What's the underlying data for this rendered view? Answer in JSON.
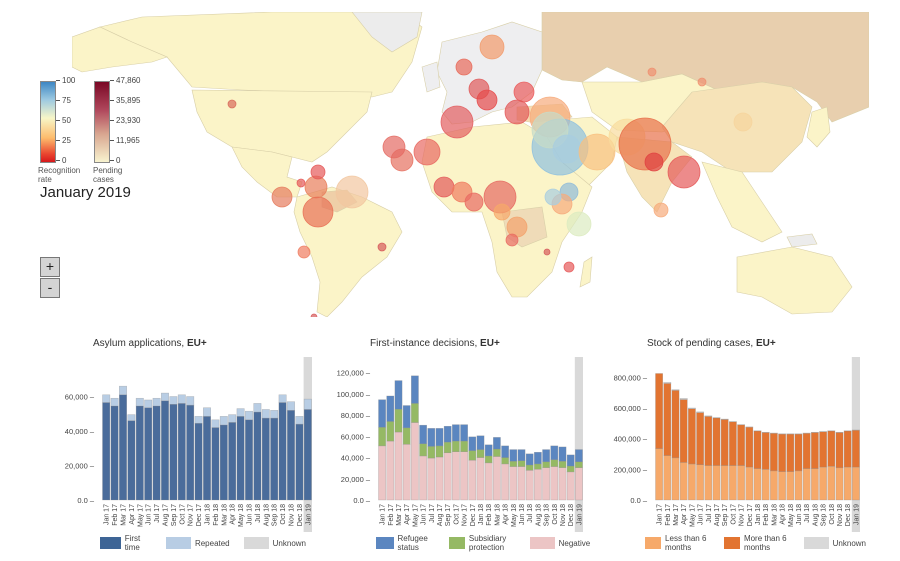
{
  "map": {
    "period": "January 2019",
    "recognition_legend": {
      "caption": "Recognition rate",
      "ticks": [
        "100",
        "75",
        "50",
        "25",
        "0"
      ]
    },
    "pending_legend": {
      "caption": "Pending cases",
      "ticks": [
        "47,860",
        "35,895",
        "23,930",
        "11,965",
        "0"
      ]
    },
    "zoom_in_label": "+",
    "zoom_out_label": "-"
  },
  "chart_data": [
    {
      "type": "bar",
      "stacked": true,
      "title": "Asylum applications, ",
      "title_bold": "EU+",
      "categories": [
        "Jan 17",
        "Feb 17",
        "Mar 17",
        "Apr 17",
        "May 17",
        "Jun 17",
        "Jul 17",
        "Aug 17",
        "Sep 17",
        "Oct 17",
        "Nov 17",
        "Dec 17",
        "Jan 18",
        "Feb 18",
        "Mar 18",
        "Apr 18",
        "May 18",
        "Jun 18",
        "Jul 18",
        "Aug 18",
        "Sep 18",
        "Oct 18",
        "Nov 18",
        "Dec 18",
        "Jan 19"
      ],
      "highlight_category": "Jan 19",
      "yticks": [
        "0.0",
        "20,000",
        "40,000",
        "60,000"
      ],
      "ylim": [
        0,
        80000
      ],
      "series": [
        {
          "name": "First time",
          "color": "#4a6c9b",
          "values": [
            56500,
            54500,
            61000,
            46000,
            54500,
            53500,
            54500,
            57500,
            55500,
            56000,
            55000,
            44500,
            48500,
            42000,
            43500,
            45000,
            48500,
            46500,
            51000,
            47500,
            47500,
            56500,
            52000,
            44000,
            52500
          ]
        },
        {
          "name": "Repeated",
          "color": "#b8cde4",
          "values": [
            4500,
            4500,
            5000,
            3500,
            4500,
            4500,
            4500,
            4500,
            4500,
            5000,
            5000,
            4000,
            5000,
            4500,
            5000,
            4500,
            4500,
            5000,
            5000,
            5000,
            4500,
            4500,
            5000,
            4500,
            6000
          ]
        },
        {
          "name": "Unknown",
          "color": "#d9d9d9",
          "values": [
            0,
            0,
            0,
            0,
            0,
            0,
            0,
            0,
            0,
            0,
            0,
            0,
            0,
            0,
            0,
            0,
            0,
            0,
            0,
            0,
            0,
            0,
            0,
            0,
            0
          ]
        }
      ]
    },
    {
      "type": "bar",
      "stacked": true,
      "title": "First-instance decisions, ",
      "title_bold": "EU+",
      "categories": [
        "Jan 17",
        "Feb 17",
        "Mar 17",
        "Apr 17",
        "May 17",
        "Jun 17",
        "Jul 17",
        "Aug 17",
        "Sep 17",
        "Oct 17",
        "Nov 17",
        "Dec 17",
        "Jan 18",
        "Feb 18",
        "Mar 18",
        "Apr 18",
        "May 18",
        "Jun 18",
        "Jul 18",
        "Aug 18",
        "Sep 18",
        "Oct 18",
        "Nov 18",
        "Dec 18",
        "Jan 19"
      ],
      "highlight_category": "Jan 19",
      "yticks": [
        "0.0",
        "20,000",
        "40,000",
        "60,000",
        "80,000",
        "100,000",
        "120,000"
      ],
      "ylim": [
        0,
        130000
      ],
      "series": [
        {
          "name": "Negative",
          "color": "#ecc5c5",
          "values": [
            51000,
            55500,
            64000,
            52500,
            73000,
            41500,
            39500,
            40500,
            44500,
            45500,
            45500,
            37500,
            40000,
            35000,
            41000,
            34000,
            31500,
            31500,
            28000,
            29000,
            30500,
            31500,
            30500,
            26500,
            30500
          ]
        },
        {
          "name": "Subsidiary protection",
          "color": "#95b964",
          "values": [
            17500,
            18500,
            21500,
            15500,
            18000,
            11500,
            11000,
            10500,
            10000,
            10000,
            10000,
            9000,
            7500,
            6500,
            7000,
            6000,
            5000,
            5500,
            5000,
            5000,
            5500,
            6500,
            6000,
            5500,
            5500
          ]
        },
        {
          "name": "Refugee status",
          "color": "#5b86c0",
          "values": [
            26000,
            24000,
            27000,
            21000,
            26000,
            17500,
            17000,
            16500,
            15000,
            15500,
            15500,
            13000,
            13000,
            10500,
            11000,
            11000,
            11000,
            10500,
            10500,
            11000,
            11500,
            13000,
            13500,
            10500,
            11500
          ]
        }
      ]
    },
    {
      "type": "bar",
      "stacked": true,
      "title": "Stock of pending cases, ",
      "title_bold": "EU+",
      "categories": [
        "Jan 17",
        "Feb 17",
        "Mar 17",
        "Apr 17",
        "May 17",
        "Jun 17",
        "Jul 17",
        "Aug 17",
        "Sep 17",
        "Oct 17",
        "Nov 17",
        "Dec 17",
        "Jan 18",
        "Feb 18",
        "Mar 18",
        "Apr 18",
        "May 18",
        "Jun 18",
        "Jul 18",
        "Aug 18",
        "Sep 18",
        "Oct 18",
        "Nov 18",
        "Dec 18",
        "Jan 19"
      ],
      "highlight_category": "Jan 19",
      "yticks": [
        "0.0",
        "200,000",
        "400,000",
        "600,000",
        "800,000"
      ],
      "ylim": [
        0,
        900000
      ],
      "series": [
        {
          "name": "Less than 6 months",
          "color": "#f6a96a",
          "values": [
            335000,
            290000,
            275000,
            245000,
            235000,
            230000,
            225000,
            225000,
            225000,
            225000,
            225000,
            215000,
            205000,
            200000,
            190000,
            185000,
            185000,
            190000,
            205000,
            205000,
            215000,
            220000,
            210000,
            215000,
            215000
          ]
        },
        {
          "name": "More than 6 months",
          "color": "#e27431",
          "values": [
            490000,
            470000,
            440000,
            410000,
            360000,
            340000,
            320000,
            310000,
            300000,
            285000,
            265000,
            260000,
            245000,
            240000,
            245000,
            245000,
            245000,
            240000,
            230000,
            235000,
            230000,
            230000,
            230000,
            235000,
            240000
          ]
        },
        {
          "name": "Unknown",
          "color": "#d9d9d9",
          "values": [
            0,
            8000,
            5000,
            8000,
            5000,
            5000,
            4000,
            3000,
            3000,
            2000,
            2000,
            2000,
            2000,
            2000,
            2000,
            2000,
            2000,
            2000,
            2000,
            2000,
            2000,
            2000,
            2000,
            2000,
            2000
          ]
        }
      ]
    }
  ],
  "legends": [
    [
      {
        "label": "First time",
        "color": "#3e6596"
      },
      {
        "label": "Repeated",
        "color": "#b8cde4"
      },
      {
        "label": "Unknown",
        "color": "#d9d9d9"
      }
    ],
    [
      {
        "label": "Refugee status",
        "color": "#5b86c0"
      },
      {
        "label": "Subsidiary protection",
        "color": "#95b964"
      },
      {
        "label": "Negative",
        "color": "#ecc5c5"
      }
    ],
    [
      {
        "label": "Less than 6 months",
        "color": "#f6a96a"
      },
      {
        "label": "More than 6 months",
        "color": "#e27431"
      },
      {
        "label": "Unknown",
        "color": "#d9d9d9"
      }
    ]
  ]
}
